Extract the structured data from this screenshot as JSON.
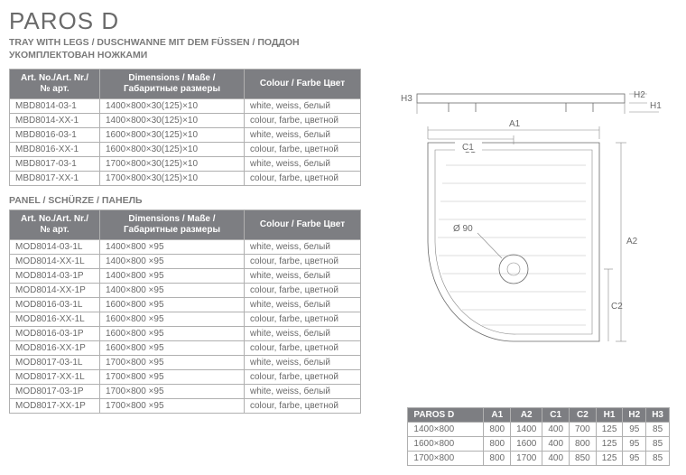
{
  "title": "PAROS D",
  "subtitle_line1": "TRAY WITH LEGS / DUSCHWANNE MIT DEM FÜSSEN / ПОДДОН",
  "subtitle_line2": "УКОМПЛЕКТОВАН НОЖКАМИ",
  "table_headers": {
    "art": "Art. No./Art. Nr./ № арт.",
    "dims": "Dimensions / Maße / Габаритные размеры",
    "colour": "Colour / Farbe Цвет"
  },
  "tray_rows": [
    {
      "art": "MBD8014-03-1",
      "dims": "1400×800×30(125)×10",
      "col": "white, weiss, белый"
    },
    {
      "art": "MBD8014-XX-1",
      "dims": "1400×800×30(125)×10",
      "col": "colour, farbe, цветной"
    },
    {
      "art": "MBD8016-03-1",
      "dims": "1600×800×30(125)×10",
      "col": "white, weiss, белый"
    },
    {
      "art": "MBD8016-XX-1",
      "dims": "1600×800×30(125)×10",
      "col": "colour, farbe, цветной"
    },
    {
      "art": "MBD8017-03-1",
      "dims": "1700×800×30(125)×10",
      "col": "white, weiss, белый"
    },
    {
      "art": "MBD8017-XX-1",
      "dims": "1700×800×30(125)×10",
      "col": "colour, farbe, цветной"
    }
  ],
  "panel_heading": "PANEL / SCHÜRZE / ПАНЕЛЬ",
  "panel_rows": [
    {
      "art": "MOD8014-03-1L",
      "dims": "1400×800 ×95",
      "col": "white, weiss, белый"
    },
    {
      "art": "MOD8014-XX-1L",
      "dims": "1400×800 ×95",
      "col": "colour, farbe, цветной"
    },
    {
      "art": "MOD8014-03-1P",
      "dims": "1400×800 ×95",
      "col": "white, weiss, белый"
    },
    {
      "art": "MOD8014-XX-1P",
      "dims": "1400×800 ×95",
      "col": "colour, farbe, цветной"
    },
    {
      "art": "MOD8016-03-1L",
      "dims": "1600×800 ×95",
      "col": "white, weiss, белый"
    },
    {
      "art": "MOD8016-XX-1L",
      "dims": "1600×800 ×95",
      "col": "colour, farbe, цветной"
    },
    {
      "art": "MOD8016-03-1P",
      "dims": "1600×800 ×95",
      "col": "white, weiss, белый"
    },
    {
      "art": "MOD8016-XX-1P",
      "dims": "1600×800 ×95",
      "col": "colour, farbe, цветной"
    },
    {
      "art": "MOD8017-03-1L",
      "dims": "1700×800 ×95",
      "col": "white, weiss, белый"
    },
    {
      "art": "MOD8017-XX-1L",
      "dims": "1700×800 ×95",
      "col": "colour, farbe, цветной"
    },
    {
      "art": "MOD8017-03-1P",
      "dims": "1700×800 ×95",
      "col": "white, weiss, белый"
    },
    {
      "art": "MOD8017-XX-1P",
      "dims": "1700×800 ×95",
      "col": "colour, farbe, цветной"
    }
  ],
  "dims_table": {
    "name": "PAROS D",
    "cols": [
      "A1",
      "A2",
      "C1",
      "C2",
      "H1",
      "H2",
      "H3"
    ],
    "rows": [
      {
        "size": "1400×800",
        "v": [
          "800",
          "1400",
          "400",
          "700",
          "125",
          "95",
          "85"
        ]
      },
      {
        "size": "1600×800",
        "v": [
          "800",
          "1600",
          "400",
          "800",
          "125",
          "95",
          "85"
        ]
      },
      {
        "size": "1700×800",
        "v": [
          "800",
          "1700",
          "400",
          "850",
          "125",
          "95",
          "85"
        ]
      }
    ]
  },
  "diagram": {
    "labels": {
      "a1": "A1",
      "a2": "A2",
      "c1": "C1",
      "c2": "C2",
      "h1": "H1",
      "h2": "H2",
      "h3": "H3",
      "drain": "Ø 90"
    }
  }
}
